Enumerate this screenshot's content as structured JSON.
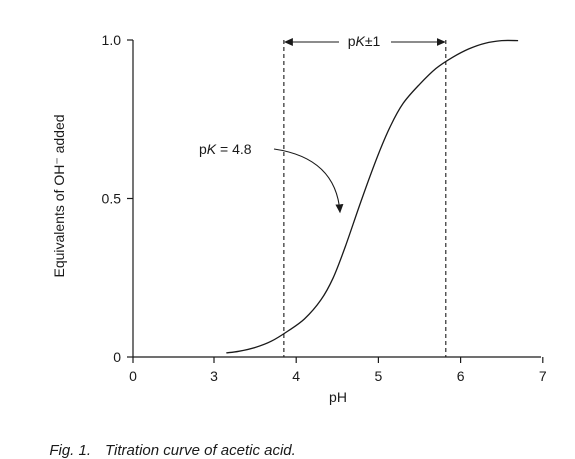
{
  "chart_data": {
    "type": "line",
    "xlabel": "pH",
    "ylabel": "Equivalents of  OH⁻ added",
    "xlim": [
      0,
      7
    ],
    "ylim": [
      0,
      1.0
    ],
    "x_ticks": [
      "0",
      "3",
      "4",
      "5",
      "6",
      "7"
    ],
    "x_tick_values": [
      0,
      3,
      4,
      5,
      6,
      7
    ],
    "y_ticks": [
      "0",
      "0.5",
      "1.0"
    ],
    "y_tick_values": [
      0,
      0.5,
      1.0
    ],
    "grid": false,
    "series": [
      {
        "x": [
          3.15,
          3.3,
          3.5,
          3.7,
          3.9,
          4.1,
          4.3,
          4.45,
          4.6,
          4.8,
          5.0,
          5.15,
          5.3,
          5.5,
          5.7,
          5.9,
          6.1,
          6.3,
          6.5,
          6.7
        ],
        "y": [
          0.013,
          0.018,
          0.03,
          0.05,
          0.082,
          0.12,
          0.18,
          0.25,
          0.35,
          0.5,
          0.64,
          0.73,
          0.8,
          0.86,
          0.91,
          0.945,
          0.972,
          0.99,
          0.998,
          0.998
        ]
      }
    ],
    "reference_lines": [
      {
        "orientation": "vertical",
        "x": 3.85,
        "style": "dashed"
      },
      {
        "orientation": "vertical",
        "x": 5.82,
        "style": "dashed"
      }
    ],
    "annotations": [
      {
        "text_prefix": "p",
        "text_italic": "K",
        "text_suffix": " = 4.8",
        "points_to": {
          "x": 4.8,
          "y": 0.45
        }
      },
      {
        "text_prefix": "p",
        "text_italic": "K",
        "text_suffix": "±1",
        "spans": [
          3.85,
          5.82
        ]
      }
    ]
  },
  "caption": {
    "number": "Fig. 1.",
    "text": "Titration curve of acetic acid."
  }
}
